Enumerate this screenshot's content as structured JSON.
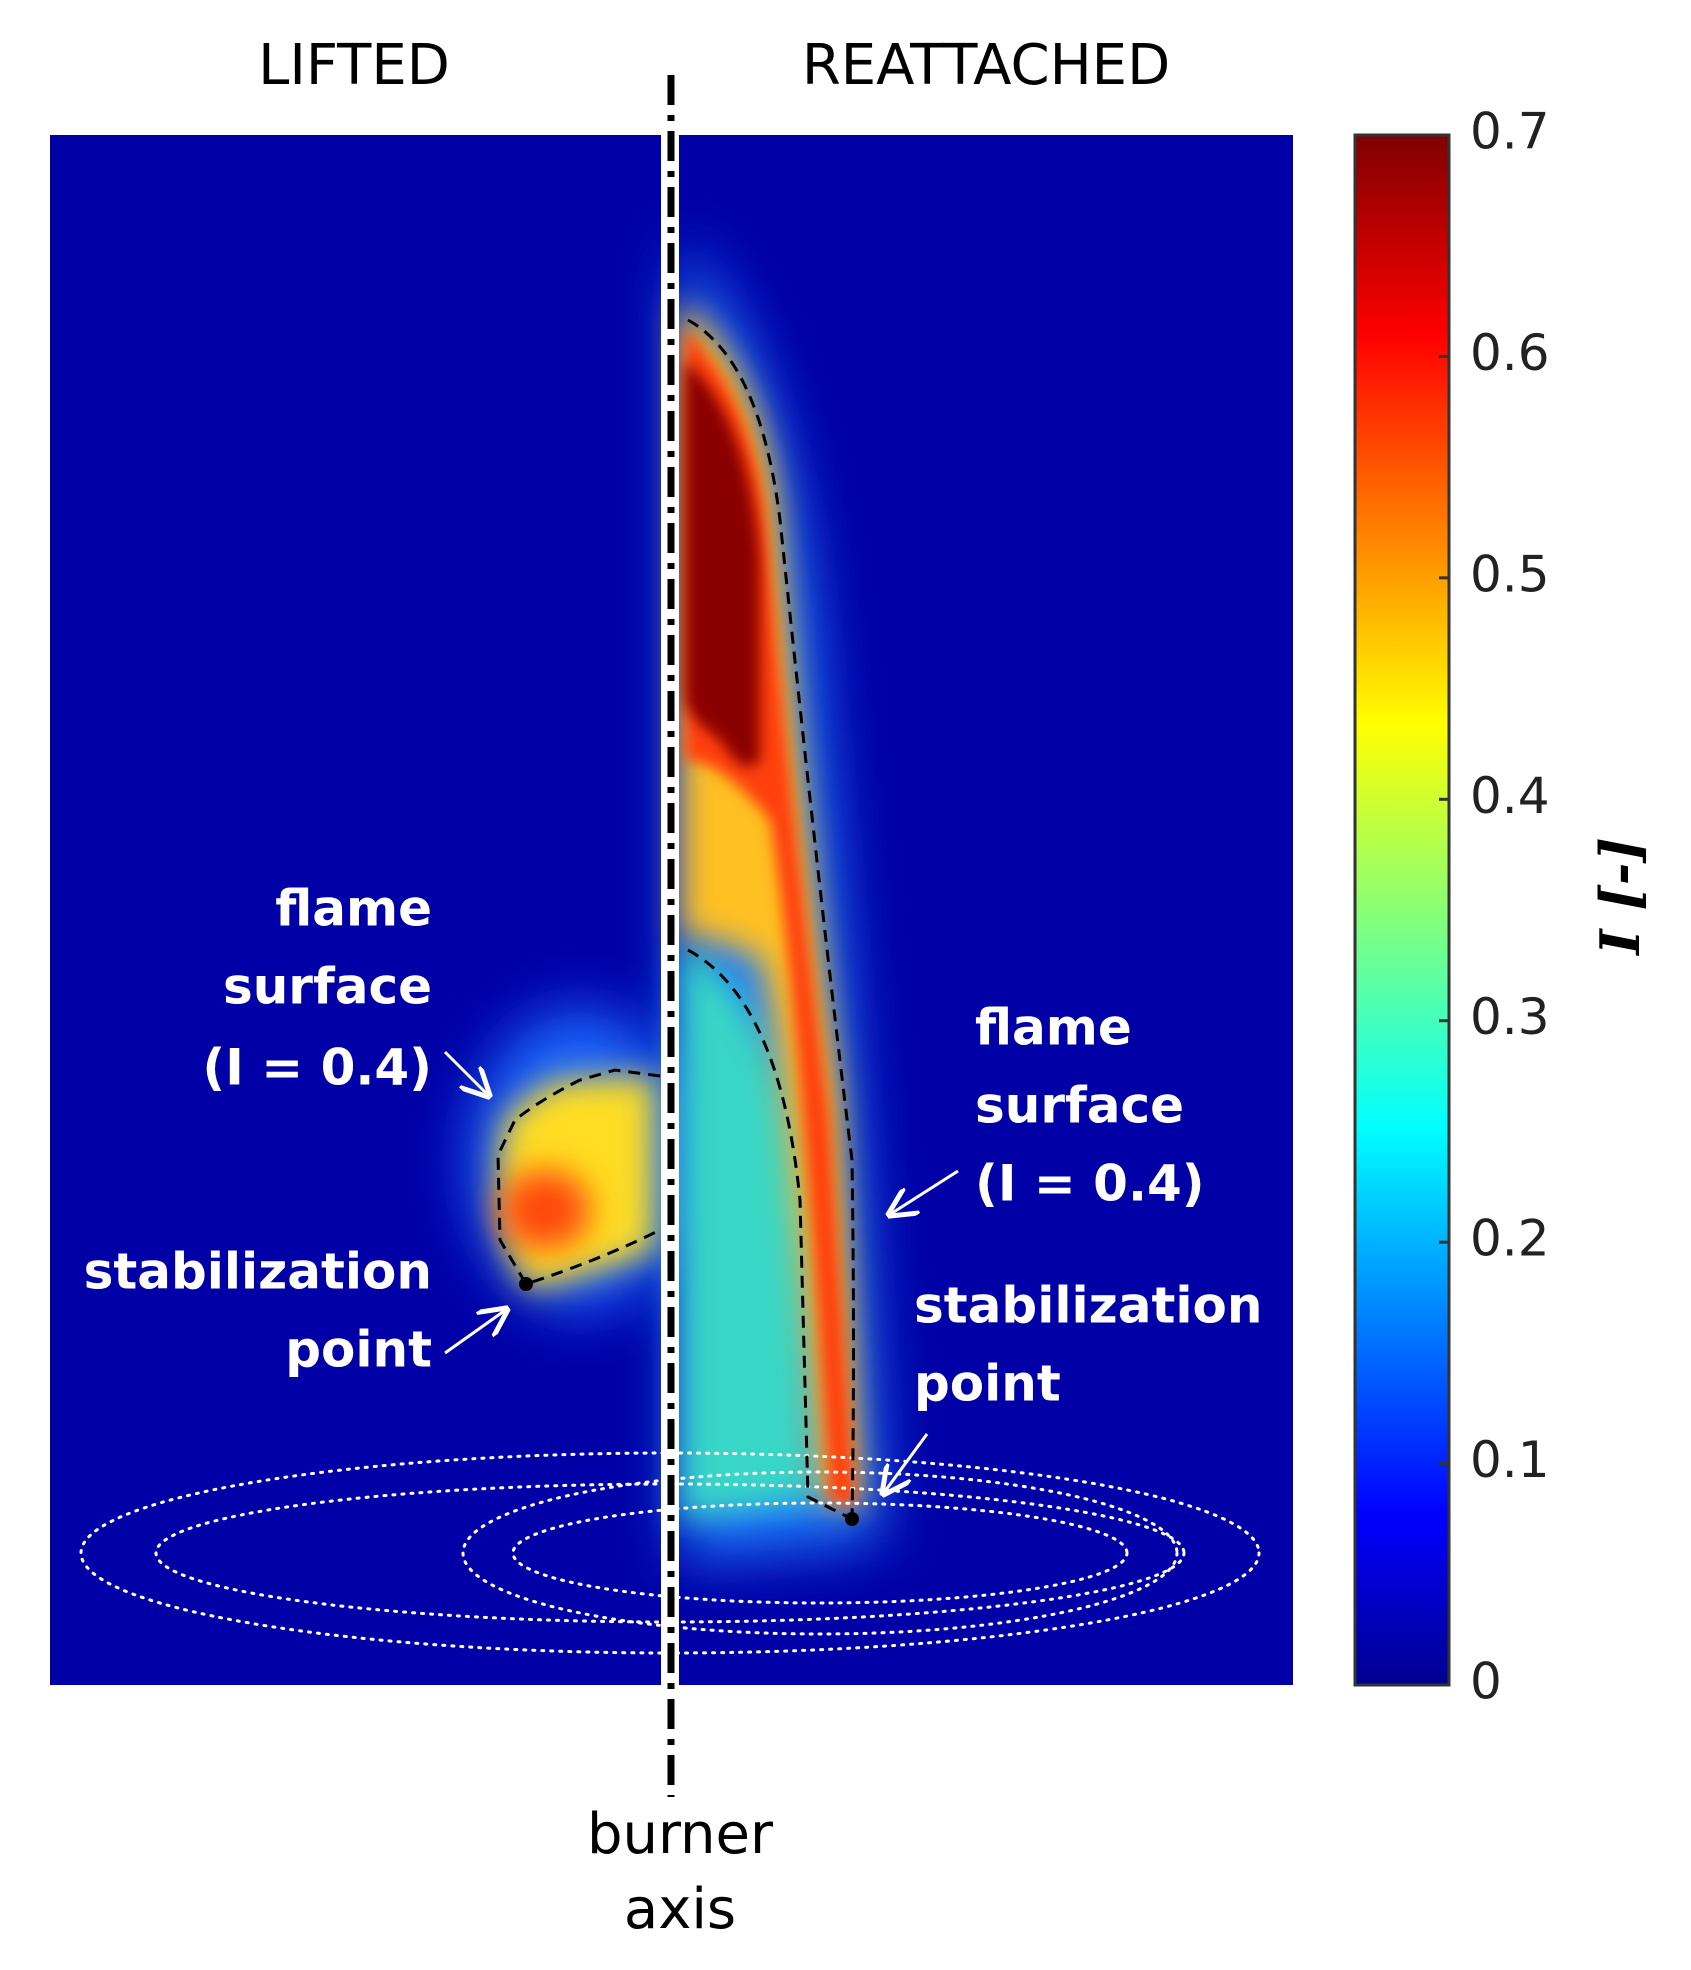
{
  "chart_data": {
    "type": "image",
    "panel_titles": [
      "LIFTED",
      "REATTACHED"
    ],
    "axis_label": [
      "burner",
      "axis"
    ],
    "annotations": {
      "left_flame": [
        "flame",
        "surface",
        "(I = 0.4)"
      ],
      "left_stabilization": [
        "stabilization",
        "point"
      ],
      "right_flame": [
        "flame",
        "surface",
        "(I = 0.4)"
      ],
      "right_stabilization": [
        "stabilization",
        "point"
      ]
    },
    "colorbar": {
      "label": "I [-]",
      "colormap": "jet",
      "clim": [
        0,
        0.7
      ],
      "ticks": [
        0,
        0.1,
        0.2,
        0.3,
        0.4,
        0.5,
        0.6,
        0.7
      ]
    }
  }
}
